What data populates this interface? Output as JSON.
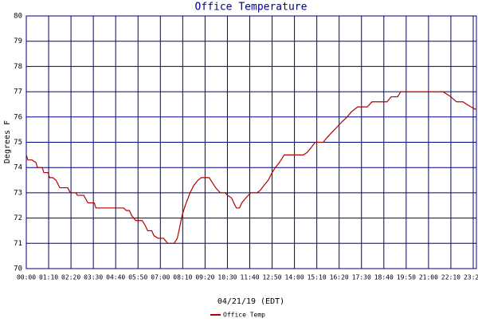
{
  "chart_data": {
    "type": "line",
    "title": "Office Temperature",
    "y_label": "Degrees F",
    "x_label": "04/21/19 (EDT)",
    "xlim": [
      0,
      1410
    ],
    "ylim": [
      70,
      80
    ],
    "yticks": [
      70,
      71,
      72,
      73,
      74,
      75,
      76,
      77,
      78,
      79,
      80
    ],
    "xticks": [
      {
        "value": 0,
        "label": "00:00"
      },
      {
        "value": 70,
        "label": "01:10"
      },
      {
        "value": 140,
        "label": "02:20"
      },
      {
        "value": 210,
        "label": "03:30"
      },
      {
        "value": 280,
        "label": "04:40"
      },
      {
        "value": 350,
        "label": "05:50"
      },
      {
        "value": 420,
        "label": "07:00"
      },
      {
        "value": 490,
        "label": "08:10"
      },
      {
        "value": 560,
        "label": "09:20"
      },
      {
        "value": 630,
        "label": "10:30"
      },
      {
        "value": 700,
        "label": "11:40"
      },
      {
        "value": 770,
        "label": "12:50"
      },
      {
        "value": 840,
        "label": "14:00"
      },
      {
        "value": 910,
        "label": "15:10"
      },
      {
        "value": 980,
        "label": "16:20"
      },
      {
        "value": 1050,
        "label": "17:30"
      },
      {
        "value": 1120,
        "label": "18:40"
      },
      {
        "value": 1190,
        "label": "19:50"
      },
      {
        "value": 1260,
        "label": "21:00"
      },
      {
        "value": 1330,
        "label": "22:10"
      },
      {
        "value": 1400,
        "label": "23:20"
      }
    ],
    "grid": true,
    "legend": "bottom",
    "x": [
      0,
      5,
      18,
      30,
      35,
      50,
      55,
      68,
      73,
      83,
      93,
      105,
      130,
      138,
      155,
      160,
      180,
      193,
      213,
      218,
      305,
      313,
      323,
      330,
      343,
      363,
      373,
      380,
      393,
      400,
      413,
      430,
      443,
      463,
      473,
      480,
      488,
      498,
      513,
      525,
      538,
      548,
      573,
      583,
      593,
      608,
      623,
      630,
      643,
      650,
      658,
      668,
      675,
      688,
      703,
      723,
      733,
      745,
      758,
      770,
      780,
      793,
      808,
      868,
      880,
      893,
      905,
      930,
      943,
      958,
      973,
      988,
      1005,
      1018,
      1038,
      1068,
      1083,
      1130,
      1143,
      1163,
      1173,
      1305,
      1318,
      1330,
      1348,
      1368,
      1380,
      1393,
      1408
    ],
    "series": [
      {
        "name": "Office Temp",
        "color": "#b00000",
        "values": [
          74.5,
          74.3,
          74.3,
          74.2,
          74.0,
          74.0,
          73.8,
          73.8,
          73.6,
          73.6,
          73.5,
          73.2,
          73.2,
          73.0,
          73.0,
          72.9,
          72.9,
          72.6,
          72.6,
          72.4,
          72.4,
          72.3,
          72.3,
          72.1,
          71.9,
          71.9,
          71.7,
          71.5,
          71.5,
          71.3,
          71.2,
          71.2,
          71.0,
          71.0,
          71.2,
          71.6,
          72.1,
          72.5,
          73.0,
          73.3,
          73.5,
          73.6,
          73.6,
          73.4,
          73.2,
          73.0,
          73.0,
          72.9,
          72.8,
          72.6,
          72.4,
          72.4,
          72.6,
          72.8,
          73.0,
          73.0,
          73.1,
          73.3,
          73.5,
          73.8,
          74.0,
          74.2,
          74.5,
          74.5,
          74.6,
          74.8,
          75.0,
          75.0,
          75.2,
          75.4,
          75.6,
          75.8,
          76.0,
          76.2,
          76.4,
          76.4,
          76.6,
          76.6,
          76.8,
          76.8,
          77.0,
          77.0,
          76.9,
          76.8,
          76.6,
          76.6,
          76.5,
          76.4,
          76.3
        ]
      }
    ]
  }
}
